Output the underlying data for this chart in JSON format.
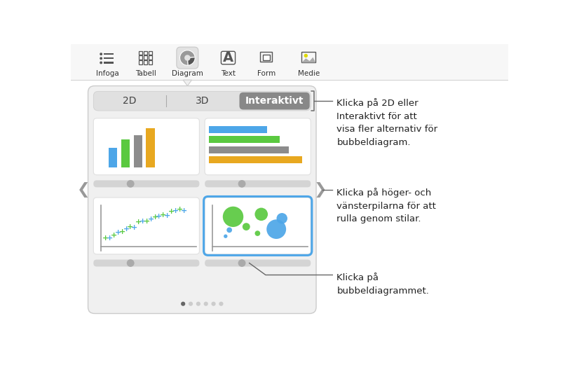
{
  "bg_color": "#ffffff",
  "toolbar_bg": "#f7f7f7",
  "toolbar_sep": "#d0d0d0",
  "toolbar_icons": [
    "Infoga",
    "Tabell",
    "Diagram",
    "Text",
    "Form",
    "Medie"
  ],
  "tab_labels": [
    "2D",
    "3D",
    "Interaktivt"
  ],
  "active_tab": 2,
  "panel_bg": "#f0f0f0",
  "panel_border": "#cccccc",
  "chart_bg": "#ffffff",
  "slider_bg": "#d4d4d4",
  "slider_thumb": "#aaaaaa",
  "dot_active": "#666666",
  "dot_inactive": "#cccccc",
  "annotation1_text": "Klicka på 2D eller\nInteraktivt för att\nvisa fler alternativ för\nbubbeldiagram.",
  "annotation2_text": "Klicka på höger- och\nvänsterpilarna för att\nrulla genom stilar.",
  "annotation3_text": "Klicka på\nbubbeldiagrammet.",
  "blue_color": "#4DA6E8",
  "green_color": "#5AC940",
  "gray_color": "#8C8C8C",
  "orange_color": "#E8A820",
  "highlight_border": "#4DA6E8",
  "ann_line_color": "#666666",
  "text_color": "#222222"
}
